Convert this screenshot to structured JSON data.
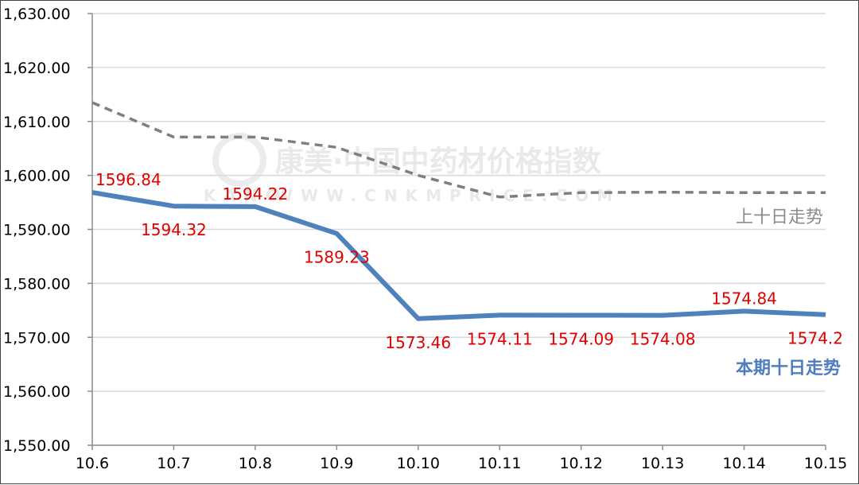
{
  "chart_data": {
    "type": "line",
    "categories": [
      "10.6",
      "10.7",
      "10.8",
      "10.9",
      "10.10",
      "10.11",
      "10.12",
      "10.13",
      "10.14",
      "10.15"
    ],
    "ylim": [
      1550,
      1630
    ],
    "yticks": [
      1550,
      1560,
      1570,
      1580,
      1590,
      1600,
      1610,
      1620,
      1630
    ],
    "ytick_labels": [
      "1,550.00",
      "1,560.00",
      "1,570.00",
      "1,580.00",
      "1,590.00",
      "1,600.00",
      "1,610.00",
      "1,620.00",
      "1,630.00"
    ],
    "grid": true,
    "series": [
      {
        "name": "上十日走势",
        "style": "dashed",
        "color": "#7f7f7f",
        "values": [
          1613.5,
          1607.1,
          1607.1,
          1605.2,
          1600.0,
          1596.0,
          1596.8,
          1596.9,
          1596.8,
          1596.8
        ]
      },
      {
        "name": "本期十日走势",
        "style": "solid",
        "color": "#4f81bd",
        "values": [
          1596.84,
          1594.32,
          1594.22,
          1589.23,
          1573.46,
          1574.11,
          1574.09,
          1574.08,
          1574.84,
          1574.2
        ],
        "labels": [
          "1596.84",
          "1594.32",
          "1594.22",
          "1589.23",
          "1573.46",
          "1574.11",
          "1574.09",
          "1574.08",
          "1574.84",
          "1574.2"
        ],
        "label_positions": [
          "above",
          "below",
          "above",
          "below",
          "below",
          "below",
          "below",
          "below",
          "above",
          "below"
        ]
      }
    ],
    "label_color": "#e00000",
    "watermark": {
      "main": "康美·中国中药材价格指数",
      "sub": "WWW.CNKMPRICE.COM"
    }
  }
}
